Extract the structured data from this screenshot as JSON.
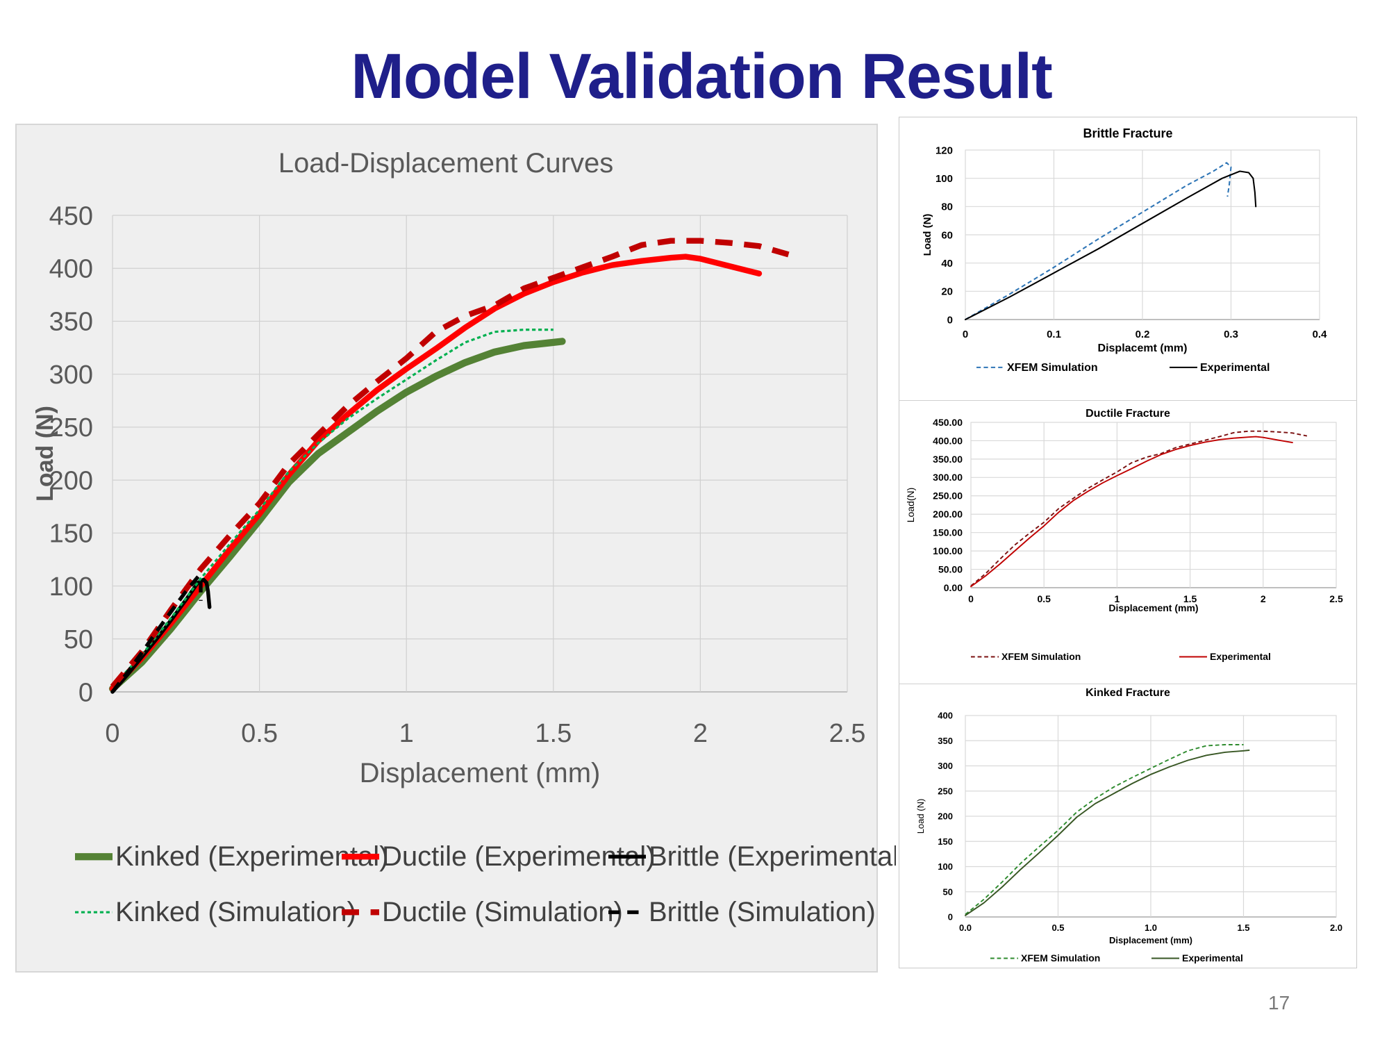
{
  "slide": {
    "title": "Model Validation Result",
    "page_number": "17"
  },
  "chart_data": [
    {
      "id": "main",
      "type": "line",
      "title": "Load-Displacement Curves",
      "xlabel": "Displacement (mm)",
      "ylabel": "Load (N)",
      "xlim": [
        0,
        2.5
      ],
      "ylim": [
        0,
        450
      ],
      "xticks": [
        "0",
        "0.5",
        "1",
        "1.5",
        "2",
        "2.5"
      ],
      "yticks": [
        "0",
        "50",
        "100",
        "150",
        "200",
        "250",
        "300",
        "350",
        "400",
        "450"
      ],
      "grid": true,
      "legend_position": "bottom",
      "series": [
        {
          "name": "Kinked (Experimental)",
          "color": "#548235",
          "style": "solid",
          "x": [
            0,
            0.1,
            0.2,
            0.3,
            0.4,
            0.5,
            0.6,
            0.7,
            0.8,
            0.9,
            1.0,
            1.1,
            1.2,
            1.3,
            1.4,
            1.5,
            1.53
          ],
          "y": [
            3,
            28,
            60,
            95,
            128,
            162,
            198,
            225,
            245,
            265,
            283,
            298,
            311,
            321,
            327,
            330,
            331
          ]
        },
        {
          "name": "Ductile (Experimental)",
          "color": "#ff0000",
          "style": "solid",
          "x": [
            0,
            0.1,
            0.2,
            0.3,
            0.4,
            0.5,
            0.6,
            0.7,
            0.8,
            0.9,
            1.0,
            1.1,
            1.2,
            1.3,
            1.4,
            1.5,
            1.6,
            1.7,
            1.8,
            1.9,
            1.95,
            2.0,
            2.1,
            2.2
          ],
          "y": [
            3,
            32,
            65,
            100,
            135,
            168,
            205,
            237,
            262,
            285,
            305,
            324,
            344,
            362,
            376,
            387,
            396,
            403,
            407,
            410,
            411,
            409,
            402,
            395
          ]
        },
        {
          "name": "Brittle (Experimental)",
          "color": "#000000",
          "style": "solid",
          "x": [
            0,
            0.05,
            0.1,
            0.15,
            0.2,
            0.25,
            0.29,
            0.31,
            0.32,
            0.325,
            0.33
          ],
          "y": [
            0,
            16,
            33,
            50,
            68,
            87,
            103,
            106,
            103,
            95,
            80
          ]
        },
        {
          "name": "Kinked (Simulation)",
          "color": "#00b050",
          "style": "dotted",
          "x": [
            0,
            0.1,
            0.2,
            0.3,
            0.4,
            0.5,
            0.6,
            0.7,
            0.8,
            0.9,
            1.0,
            1.1,
            1.2,
            1.3,
            1.4,
            1.5
          ],
          "y": [
            5,
            35,
            70,
            107,
            140,
            172,
            208,
            235,
            258,
            277,
            295,
            313,
            330,
            340,
            342,
            342
          ]
        },
        {
          "name": "Ductile (Simulation)",
          "color": "#c00000",
          "style": "dashed",
          "x": [
            0,
            0.1,
            0.2,
            0.3,
            0.4,
            0.5,
            0.6,
            0.7,
            0.8,
            0.9,
            1.0,
            1.1,
            1.2,
            1.3,
            1.4,
            1.5,
            1.6,
            1.7,
            1.8,
            1.9,
            2.0,
            2.1,
            2.2,
            2.3
          ],
          "y": [
            5,
            38,
            78,
            116,
            148,
            178,
            215,
            243,
            270,
            293,
            315,
            340,
            355,
            365,
            381,
            391,
            401,
            411,
            422,
            426,
            426,
            424,
            421,
            413
          ]
        },
        {
          "name": "Brittle (Simulation)",
          "color": "#000000",
          "style": "dashed",
          "x": [
            0,
            0.05,
            0.1,
            0.15,
            0.2,
            0.25,
            0.28,
            0.295,
            0.3,
            0.3
          ],
          "y": [
            0,
            18,
            37,
            57,
            76,
            95,
            105,
            110,
            105,
            86
          ]
        }
      ]
    },
    {
      "id": "brittle",
      "type": "line",
      "title": "Brittle Fracture",
      "xlabel": "Displacemt (mm)",
      "ylabel": "Load (N)",
      "xlim": [
        0,
        0.4
      ],
      "ylim": [
        0,
        120
      ],
      "xticks": [
        "0",
        "0.1",
        "0.2",
        "0.3",
        "0.4"
      ],
      "yticks": [
        "0",
        "20",
        "40",
        "60",
        "80",
        "100",
        "120"
      ],
      "grid": true,
      "legend_position": "bottom",
      "series": [
        {
          "name": "XFEM Simulation",
          "color": "#2e75b6",
          "style": "dashed",
          "x": [
            0,
            0.05,
            0.1,
            0.15,
            0.2,
            0.25,
            0.28,
            0.29,
            0.295,
            0.3,
            0.298,
            0.296
          ],
          "y": [
            0,
            18,
            37,
            57,
            76,
            95,
            105,
            109,
            111,
            108,
            95,
            87
          ]
        },
        {
          "name": "Experimental",
          "color": "#000000",
          "style": "solid",
          "x": [
            0,
            0.05,
            0.1,
            0.15,
            0.2,
            0.25,
            0.29,
            0.31,
            0.32,
            0.325,
            0.327,
            0.328
          ],
          "y": [
            0,
            16,
            33,
            50,
            68,
            86,
            100,
            105,
            104,
            100,
            90,
            80
          ]
        }
      ]
    },
    {
      "id": "ductile",
      "type": "line",
      "title": "Ductile Fracture",
      "xlabel": "Displacement (mm)",
      "ylabel": "Load(N)",
      "xlim": [
        0,
        2.5
      ],
      "ylim": [
        0,
        450
      ],
      "xticks": [
        "0",
        "0.5",
        "1",
        "1.5",
        "2",
        "2.5"
      ],
      "yticks": [
        "0.00",
        "50.00",
        "100.00",
        "150.00",
        "200.00",
        "250.00",
        "300.00",
        "350.00",
        "400.00",
        "450.00"
      ],
      "grid": true,
      "legend_position": "bottom",
      "series": [
        {
          "name": "XFEM Simulation",
          "color": "#7b1010",
          "style": "dashed",
          "x": [
            0,
            0.1,
            0.2,
            0.3,
            0.4,
            0.5,
            0.6,
            0.7,
            0.8,
            0.9,
            1.0,
            1.1,
            1.2,
            1.3,
            1.4,
            1.5,
            1.6,
            1.7,
            1.8,
            1.9,
            2.0,
            2.1,
            2.2,
            2.3
          ],
          "y": [
            5,
            38,
            78,
            116,
            148,
            178,
            215,
            243,
            270,
            293,
            315,
            340,
            355,
            365,
            381,
            391,
            401,
            411,
            422,
            426,
            426,
            424,
            421,
            413
          ]
        },
        {
          "name": "Experimental",
          "color": "#c00000",
          "style": "solid",
          "x": [
            0,
            0.1,
            0.2,
            0.3,
            0.4,
            0.5,
            0.6,
            0.7,
            0.8,
            0.9,
            1.0,
            1.1,
            1.2,
            1.3,
            1.4,
            1.5,
            1.6,
            1.7,
            1.8,
            1.9,
            1.95,
            2.0,
            2.1,
            2.2
          ],
          "y": [
            3,
            32,
            65,
            100,
            135,
            168,
            205,
            237,
            262,
            285,
            305,
            324,
            344,
            362,
            376,
            387,
            396,
            403,
            407,
            410,
            411,
            409,
            402,
            395
          ]
        }
      ]
    },
    {
      "id": "kinked",
      "type": "line",
      "title": "Kinked Fracture",
      "xlabel": "Displacement (mm)",
      "ylabel": "Load (N)",
      "xlim": [
        0,
        2
      ],
      "ylim": [
        0,
        400
      ],
      "xticks": [
        "0.0",
        "0.5",
        "1.0",
        "1.5",
        "2.0"
      ],
      "yticks": [
        "0",
        "50",
        "100",
        "150",
        "200",
        "250",
        "300",
        "350",
        "400"
      ],
      "grid": true,
      "legend_position": "bottom",
      "series": [
        {
          "name": "XFEM Simulation",
          "color": "#2e8b2e",
          "style": "dashed",
          "x": [
            0,
            0.1,
            0.2,
            0.3,
            0.4,
            0.5,
            0.6,
            0.7,
            0.8,
            0.9,
            1.0,
            1.1,
            1.2,
            1.3,
            1.4,
            1.5
          ],
          "y": [
            5,
            35,
            70,
            107,
            140,
            172,
            208,
            235,
            258,
            277,
            295,
            313,
            330,
            340,
            342,
            342
          ]
        },
        {
          "name": "Experimental",
          "color": "#375623",
          "style": "solid",
          "x": [
            0,
            0.1,
            0.2,
            0.3,
            0.4,
            0.5,
            0.6,
            0.7,
            0.8,
            0.9,
            1.0,
            1.1,
            1.2,
            1.3,
            1.4,
            1.5,
            1.53
          ],
          "y": [
            3,
            28,
            60,
            95,
            128,
            162,
            198,
            225,
            245,
            265,
            283,
            298,
            311,
            321,
            327,
            330,
            331
          ]
        }
      ]
    }
  ]
}
